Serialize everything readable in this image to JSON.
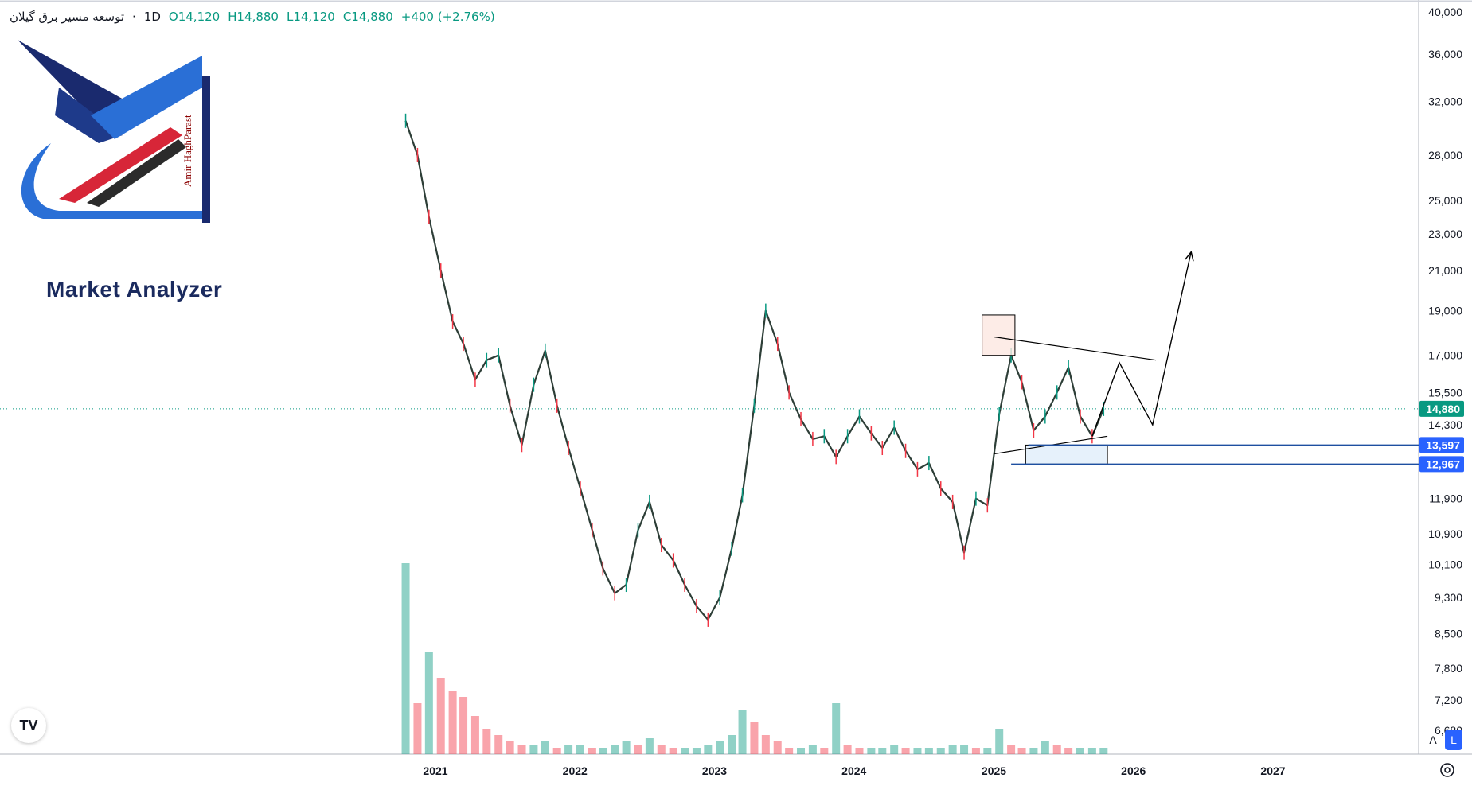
{
  "legend": {
    "symbol": "توسعه مسیر برق گیلان",
    "separator": "·",
    "timeframe": "1D",
    "open": "O14,120",
    "high": "H14,880",
    "low": "L14,120",
    "close": "C14,880",
    "change": "+400 (+2.76%)"
  },
  "logo": {
    "name": "Market Analyzer",
    "author": "Amir HaghParast"
  },
  "buttons": {
    "tradingview": "TV",
    "auto_scale": "A",
    "log_scale": "L"
  },
  "colors": {
    "up": "#089981",
    "down": "#f23645",
    "accent": "#2962ff",
    "line": "#000000"
  },
  "chart_data": {
    "type": "line",
    "title": "",
    "xlabel": "",
    "ylabel": "",
    "scale": "log",
    "ylim": [
      6680,
      40000
    ],
    "price_ticks": [
      "40,000",
      "36,000",
      "32,000",
      "28,000",
      "25,000",
      "23,000",
      "21,000",
      "19,000",
      "17,000",
      "15,500",
      "14,300",
      "11,900",
      "10,900",
      "10,100",
      "9,300",
      "8,500",
      "7,800",
      "7,200",
      "6,680"
    ],
    "time_ticks": [
      "2021",
      "2022",
      "2023",
      "2024",
      "2025",
      "2026",
      "2027"
    ],
    "price_labels": [
      {
        "text": "14,880",
        "value": 14880,
        "color": "#089981"
      },
      {
        "text": "13,597",
        "value": 13597,
        "color": "#2962ff"
      },
      {
        "text": "12,967",
        "value": 12967,
        "color": "#2962ff"
      }
    ],
    "series": [
      {
        "x": [
          "2020-10",
          "2020-11",
          "2020-12",
          "2021-01",
          "2021-02",
          "2021-03",
          "2021-04",
          "2021-05",
          "2021-06",
          "2021-07",
          "2021-08",
          "2021-09",
          "2021-10",
          "2021-11",
          "2021-12",
          "2022-01",
          "2022-02",
          "2022-03",
          "2022-04",
          "2022-05",
          "2022-06",
          "2022-07",
          "2022-08",
          "2022-09",
          "2022-10",
          "2022-11",
          "2022-12",
          "2023-01",
          "2023-02",
          "2023-03",
          "2023-04",
          "2023-05",
          "2023-06",
          "2023-07",
          "2023-08",
          "2023-09",
          "2023-10",
          "2023-11",
          "2023-12",
          "2024-01",
          "2024-02",
          "2024-03",
          "2024-04",
          "2024-05",
          "2024-06",
          "2024-07",
          "2024-08",
          "2024-09",
          "2024-10",
          "2024-11",
          "2024-12",
          "2025-01",
          "2025-02",
          "2025-03",
          "2025-04",
          "2025-05",
          "2025-06",
          "2025-07",
          "2025-08",
          "2025-09",
          "2025-10"
        ],
        "y": [
          30500,
          28000,
          24000,
          21000,
          18500,
          17500,
          16000,
          16800,
          17000,
          15000,
          13600,
          15800,
          17200,
          15000,
          13500,
          12200,
          11000,
          10000,
          9400,
          9600,
          11000,
          11800,
          10600,
          10200,
          9600,
          9100,
          8800,
          9300,
          10500,
          12000,
          15000,
          19000,
          17500,
          15500,
          14500,
          13800,
          13900,
          13200,
          13900,
          14600,
          14000,
          13500,
          14200,
          13400,
          12800,
          13000,
          12200,
          11800,
          10400,
          11900,
          11700,
          14700,
          17000,
          15900,
          14100,
          14600,
          15500,
          16500,
          14600,
          13900,
          14880
        ]
      }
    ],
    "volume": [
      {
        "x": "2020-10",
        "y": 30
      },
      {
        "x": "2020-11",
        "y": 8
      },
      {
        "x": "2020-12",
        "y": 16
      },
      {
        "x": "2021-01",
        "y": 12
      },
      {
        "x": "2021-02",
        "y": 10
      },
      {
        "x": "2021-03",
        "y": 9
      },
      {
        "x": "2021-04",
        "y": 6
      },
      {
        "x": "2021-05",
        "y": 4
      },
      {
        "x": "2021-06",
        "y": 3
      },
      {
        "x": "2021-07",
        "y": 2
      },
      {
        "x": "2021-08",
        "y": 1.5
      },
      {
        "x": "2021-09",
        "y": 1.5
      },
      {
        "x": "2021-10",
        "y": 2
      },
      {
        "x": "2021-11",
        "y": 1
      },
      {
        "x": "2021-12",
        "y": 1.5
      },
      {
        "x": "2022-01",
        "y": 1.5
      },
      {
        "x": "2022-02",
        "y": 1
      },
      {
        "x": "2022-03",
        "y": 1
      },
      {
        "x": "2022-04",
        "y": 1.5
      },
      {
        "x": "2022-05",
        "y": 2
      },
      {
        "x": "2022-06",
        "y": 1.5
      },
      {
        "x": "2022-07",
        "y": 2.5
      },
      {
        "x": "2022-08",
        "y": 1.5
      },
      {
        "x": "2022-09",
        "y": 1
      },
      {
        "x": "2022-10",
        "y": 1
      },
      {
        "x": "2022-11",
        "y": 1
      },
      {
        "x": "2022-12",
        "y": 1.5
      },
      {
        "x": "2023-01",
        "y": 2
      },
      {
        "x": "2023-02",
        "y": 3
      },
      {
        "x": "2023-03",
        "y": 7
      },
      {
        "x": "2023-04",
        "y": 5
      },
      {
        "x": "2023-05",
        "y": 3
      },
      {
        "x": "2023-06",
        "y": 2
      },
      {
        "x": "2023-07",
        "y": 1
      },
      {
        "x": "2023-08",
        "y": 1
      },
      {
        "x": "2023-09",
        "y": 1.5
      },
      {
        "x": "2023-10",
        "y": 1
      },
      {
        "x": "2023-11",
        "y": 8
      },
      {
        "x": "2023-12",
        "y": 1.5
      },
      {
        "x": "2024-01",
        "y": 1
      },
      {
        "x": "2024-02",
        "y": 1
      },
      {
        "x": "2024-03",
        "y": 1
      },
      {
        "x": "2024-04",
        "y": 1.5
      },
      {
        "x": "2024-05",
        "y": 1
      },
      {
        "x": "2024-06",
        "y": 1
      },
      {
        "x": "2024-07",
        "y": 1
      },
      {
        "x": "2024-08",
        "y": 1
      },
      {
        "x": "2024-09",
        "y": 1.5
      },
      {
        "x": "2024-10",
        "y": 1.5
      },
      {
        "x": "2024-11",
        "y": 1
      },
      {
        "x": "2024-12",
        "y": 1
      },
      {
        "x": "2025-01",
        "y": 4
      },
      {
        "x": "2025-02",
        "y": 1.5
      },
      {
        "x": "2025-03",
        "y": 1
      },
      {
        "x": "2025-04",
        "y": 1
      },
      {
        "x": "2025-05",
        "y": 2
      },
      {
        "x": "2025-06",
        "y": 1.5
      },
      {
        "x": "2025-07",
        "y": 1
      },
      {
        "x": "2025-08",
        "y": 1
      },
      {
        "x": "2025-09",
        "y": 1
      },
      {
        "x": "2025-10",
        "y": 1
      }
    ],
    "annotations": {
      "resistance_zone": {
        "x": [
          "2024-12-01",
          "2025-02-25"
        ],
        "y": [
          17000,
          18800
        ]
      },
      "support_zone": {
        "x": [
          "2025-03-25",
          "2025-10-25"
        ],
        "y": [
          12967,
          13597
        ]
      },
      "trendline_top": {
        "x": [
          "2025-01-01",
          "2026-03-01"
        ],
        "y": [
          17800,
          16800
        ]
      },
      "trendline_bottom": {
        "x": [
          "2025-01-01",
          "2025-10-25"
        ],
        "y": [
          13300,
          13900
        ]
      },
      "support_line_13597": {
        "x": [
          "2025-04-01",
          "2028-01-01"
        ],
        "y": [
          13597,
          13597
        ]
      },
      "support_line_12967": {
        "x": [
          "2025-02-15",
          "2028-01-01"
        ],
        "y": [
          12967,
          12967
        ]
      },
      "projection": {
        "x": [
          "2025-09-15",
          "2025-11-25",
          "2026-02-20",
          "2026-06-01"
        ],
        "y": [
          13900,
          16700,
          14300,
          22000
        ]
      }
    },
    "grid": false,
    "legend_position": "top-left"
  }
}
